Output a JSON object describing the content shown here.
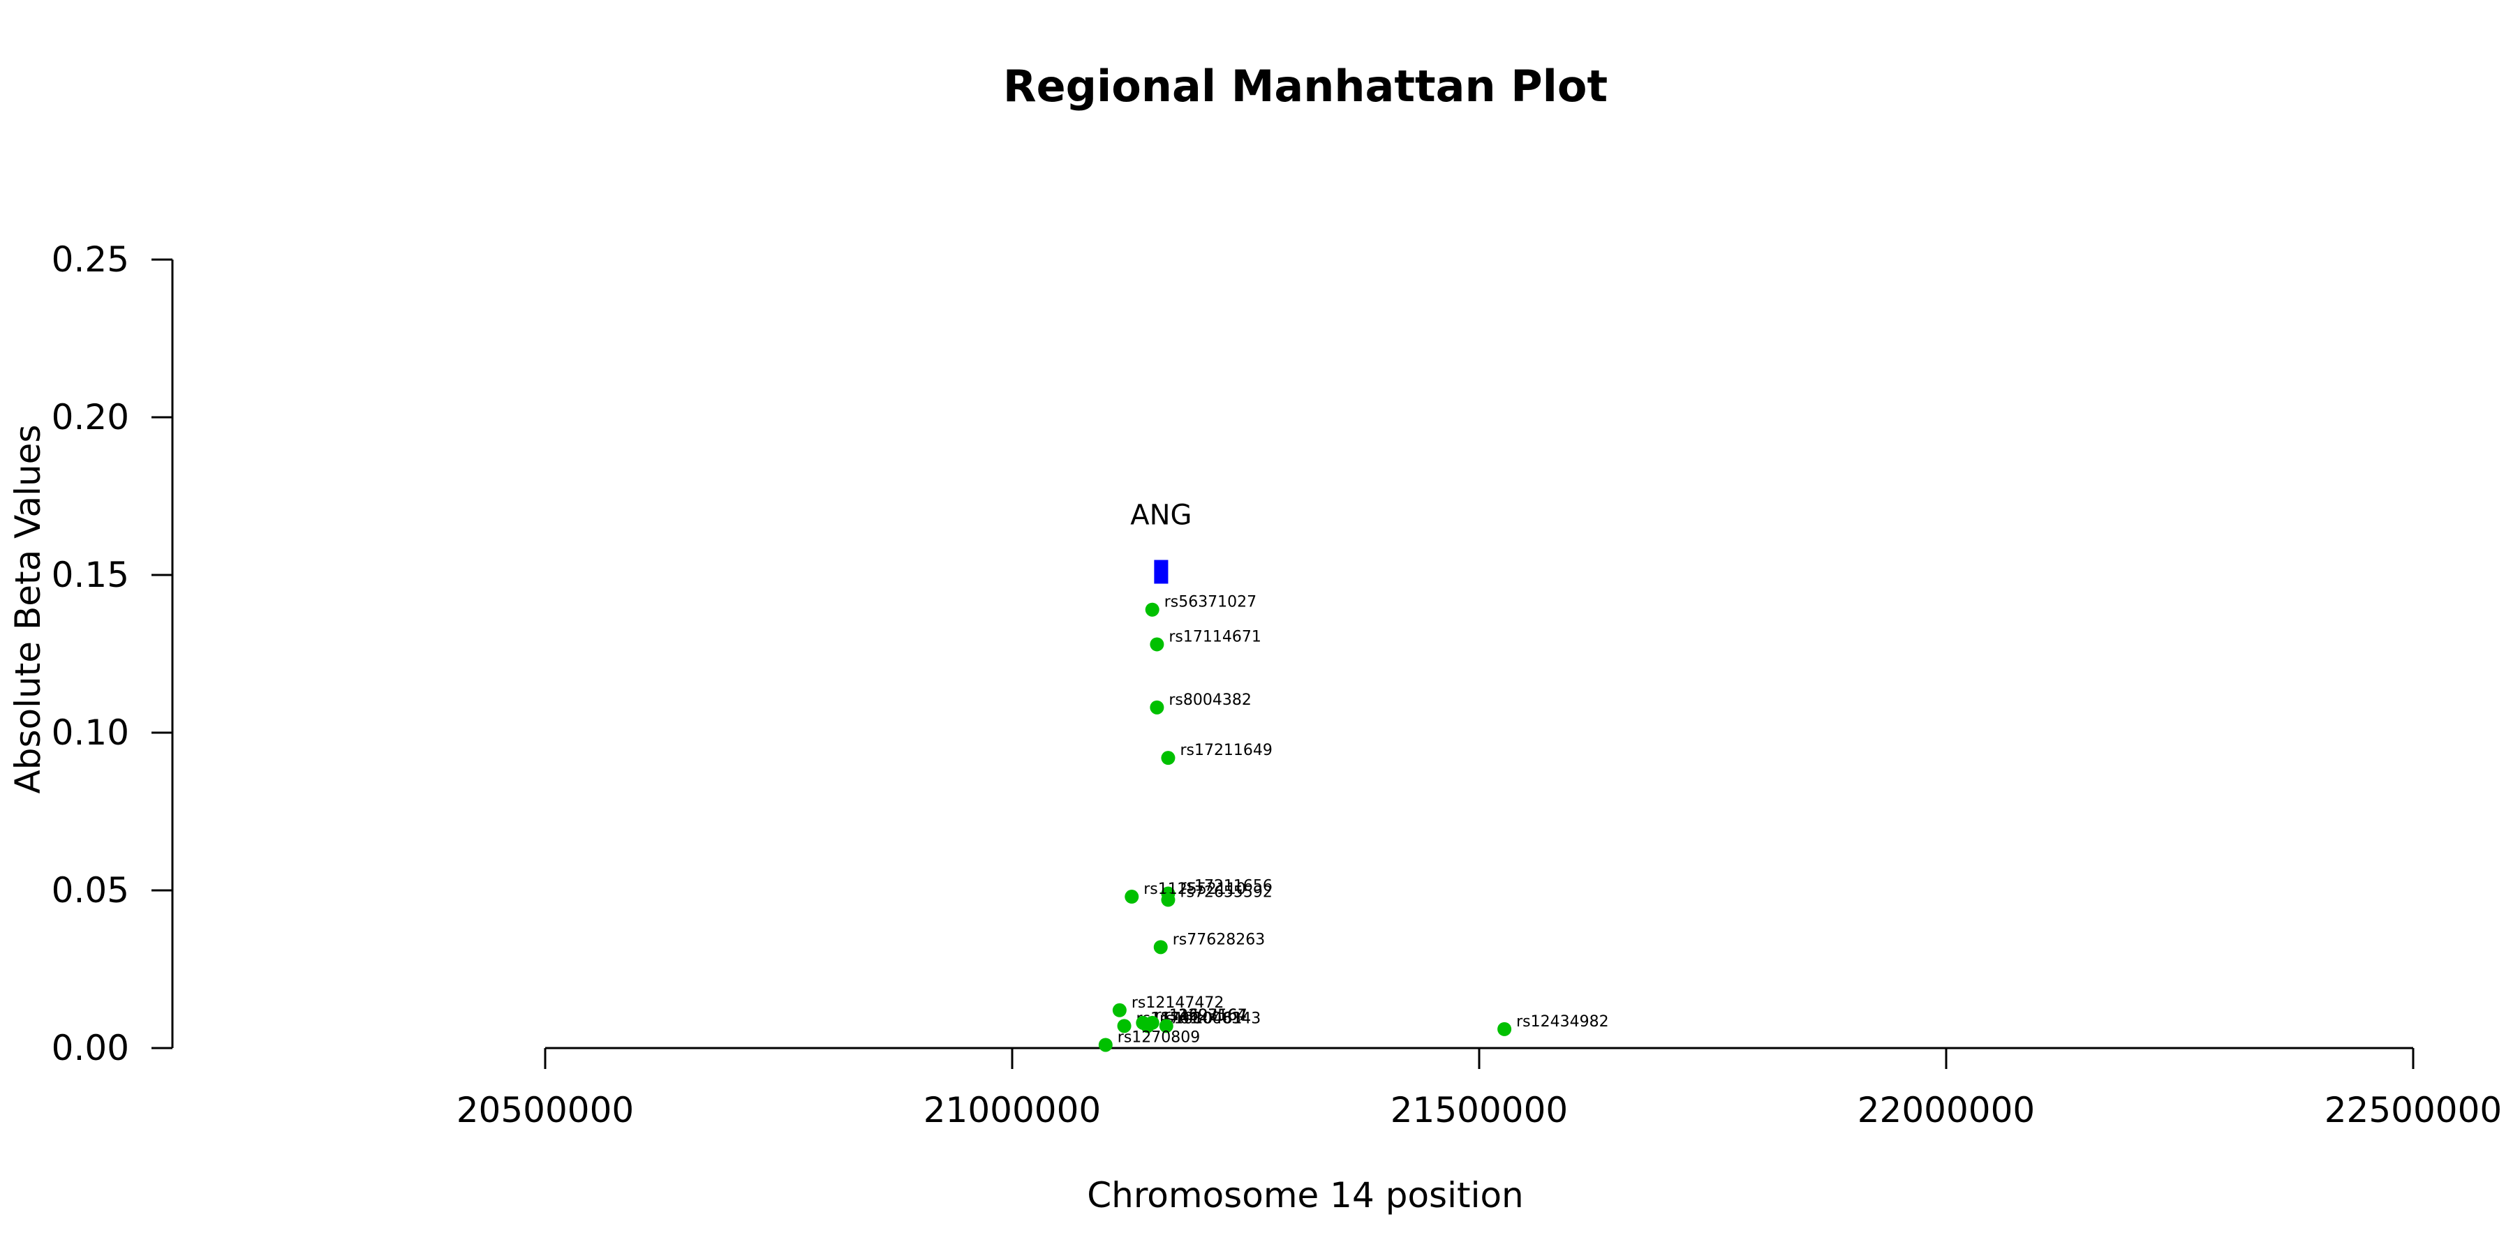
{
  "chart_data": {
    "type": "scatter",
    "title": "Regional Manhattan Plot",
    "xlabel": "Chromosome 14 position",
    "ylabel": "Absolute Beta Values",
    "xlim": [
      20500000,
      22500000
    ],
    "ylim": [
      0,
      0.25
    ],
    "x_ticks": [
      "20500000",
      "21000000",
      "21500000",
      "22000000",
      "22500000"
    ],
    "y_ticks": [
      "0.00",
      "0.05",
      "0.10",
      "0.15",
      "0.20",
      "0.25"
    ],
    "point_color": "#00c000",
    "gene_color": "#0000ff",
    "genes": [
      {
        "name": "ANG",
        "start": 21152000,
        "end": 21167000,
        "y": 0.151
      }
    ],
    "points": [
      {
        "label": "rs56371027",
        "x": 21150000,
        "y": 0.139
      },
      {
        "label": "rs17114671",
        "x": 21155000,
        "y": 0.128
      },
      {
        "label": "rs8004382",
        "x": 21155000,
        "y": 0.108
      },
      {
        "label": "rs17211649",
        "x": 21167000,
        "y": 0.092
      },
      {
        "label": "rs17211656",
        "x": 21167000,
        "y": 0.049
      },
      {
        "label": "rs112552110",
        "x": 21128000,
        "y": 0.048
      },
      {
        "label": "rs72655592",
        "x": 21167000,
        "y": 0.047
      },
      {
        "label": "rs77628263",
        "x": 21159000,
        "y": 0.032
      },
      {
        "label": "rs12147472",
        "x": 21115000,
        "y": 0.012
      },
      {
        "label": "rs11701",
        "x": 21120000,
        "y": 0.007
      },
      {
        "label": "rs11623167",
        "x": 21140000,
        "y": 0.008
      },
      {
        "label": "rs1010461",
        "x": 21145000,
        "y": 0.007
      },
      {
        "label": "rs2297564",
        "x": 21150000,
        "y": 0.008
      },
      {
        "label": "rs8006343",
        "x": 21165000,
        "y": 0.007
      },
      {
        "label": "rs1270809",
        "x": 21100000,
        "y": 0.001
      },
      {
        "label": "rs12434982",
        "x": 21527000,
        "y": 0.006
      }
    ]
  }
}
